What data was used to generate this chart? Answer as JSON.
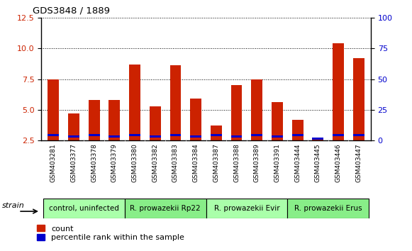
{
  "title": "GDS3848 / 1889",
  "samples": [
    "GSM403281",
    "GSM403377",
    "GSM403378",
    "GSM403379",
    "GSM403380",
    "GSM403382",
    "GSM403383",
    "GSM403384",
    "GSM403387",
    "GSM403388",
    "GSM403389",
    "GSM403391",
    "GSM403444",
    "GSM403445",
    "GSM403446",
    "GSM403447"
  ],
  "red_values": [
    7.5,
    4.7,
    5.8,
    5.8,
    8.7,
    5.3,
    8.6,
    5.9,
    3.7,
    7.0,
    7.5,
    5.6,
    4.2,
    2.7,
    10.4,
    9.2
  ],
  "blue_values": [
    0.18,
    0.18,
    0.18,
    0.18,
    0.18,
    0.18,
    0.18,
    0.18,
    0.18,
    0.18,
    0.18,
    0.18,
    0.18,
    0.18,
    0.18,
    0.18
  ],
  "blue_positions": [
    2.85,
    2.75,
    2.85,
    2.75,
    2.85,
    2.75,
    2.85,
    2.75,
    2.85,
    2.75,
    2.85,
    2.75,
    2.85,
    2.55,
    2.85,
    2.85
  ],
  "groups": [
    {
      "label": "control, uninfected",
      "start": 0,
      "end": 4,
      "color": "#aaffaa"
    },
    {
      "label": "R. prowazekii Rp22",
      "start": 4,
      "end": 8,
      "color": "#88ee88"
    },
    {
      "label": "R. prowazekii Evir",
      "start": 8,
      "end": 12,
      "color": "#aaffaa"
    },
    {
      "label": "R. prowazekii Erus",
      "start": 12,
      "end": 16,
      "color": "#88ee88"
    }
  ],
  "ylim_left": [
    2.5,
    12.5
  ],
  "ylim_right": [
    0,
    100
  ],
  "yticks_left": [
    2.5,
    5.0,
    7.5,
    10.0,
    12.5
  ],
  "yticks_right": [
    0,
    25,
    50,
    75,
    100
  ],
  "red_color": "#cc2200",
  "blue_color": "#0000cc",
  "bar_width": 0.55,
  "legend_count_label": "count",
  "legend_pct_label": "percentile rank within the sample",
  "strain_label": "strain"
}
